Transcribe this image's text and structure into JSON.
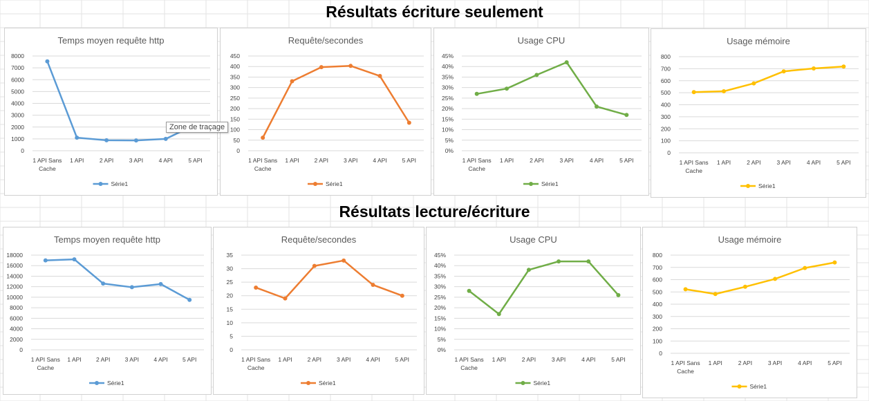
{
  "sections": [
    {
      "title": "Résultats écriture seulement"
    },
    {
      "title": "Résultats lecture/écriture"
    }
  ],
  "tooltip": "Zone de traçage",
  "chart_data": [
    {
      "type": "line",
      "title": "Temps moyen requête http",
      "categories": [
        "1 API Sans Cache",
        "1 API",
        "2 API",
        "3 API",
        "4 API",
        "5 API"
      ],
      "series": [
        {
          "name": "Série1",
          "values": [
            7550,
            1100,
            880,
            870,
            1000,
            2200
          ]
        }
      ],
      "yticks": [
        0,
        1000,
        2000,
        3000,
        4000,
        5000,
        6000,
        7000,
        8000
      ],
      "ylim": [
        0,
        8000
      ],
      "color": "#5b9bd5",
      "grid": true,
      "legend": "bottom"
    },
    {
      "type": "line",
      "title": "Requête/secondes",
      "categories": [
        "1 API Sans Cache",
        "1 API",
        "2 API",
        "3 API",
        "4 API",
        "5 API"
      ],
      "series": [
        {
          "name": "Série1",
          "values": [
            62,
            330,
            397,
            403,
            355,
            133
          ]
        }
      ],
      "yticks": [
        0,
        50,
        100,
        150,
        200,
        250,
        300,
        350,
        400,
        450
      ],
      "ylim": [
        0,
        450
      ],
      "color": "#ed7d31",
      "grid": true,
      "legend": "bottom"
    },
    {
      "type": "line",
      "title": "Usage CPU",
      "categories": [
        "1 API Sans Cache",
        "1 API",
        "2 API",
        "3 API",
        "4 API",
        "5 API"
      ],
      "series": [
        {
          "name": "Série1",
          "values": [
            27,
            29.5,
            36,
            42,
            21,
            17
          ]
        }
      ],
      "yticks": [
        0,
        5,
        10,
        15,
        20,
        25,
        30,
        35,
        40,
        45
      ],
      "ylim": [
        0,
        45
      ],
      "unit": "%",
      "color": "#70ad47",
      "grid": true,
      "legend": "bottom"
    },
    {
      "type": "line",
      "title": "Usage mémoire",
      "categories": [
        "1 API Sans Cache",
        "1 API",
        "2 API",
        "3 API",
        "4 API",
        "5 API"
      ],
      "series": [
        {
          "name": "Série1",
          "values": [
            505,
            512,
            578,
            678,
            702,
            718
          ]
        }
      ],
      "yticks": [
        0,
        100,
        200,
        300,
        400,
        500,
        600,
        700,
        800
      ],
      "ylim": [
        0,
        800
      ],
      "color": "#ffc000",
      "grid": true,
      "legend": "bottom"
    },
    {
      "type": "line",
      "title": "Temps moyen requête http",
      "categories": [
        "1 API Sans Cache",
        "1 API",
        "2 API",
        "3 API",
        "4 API",
        "5 API"
      ],
      "series": [
        {
          "name": "Série1",
          "values": [
            17000,
            17200,
            12600,
            11900,
            12500,
            9500
          ]
        }
      ],
      "yticks": [
        0,
        2000,
        4000,
        6000,
        8000,
        10000,
        12000,
        14000,
        16000,
        18000
      ],
      "ylim": [
        0,
        18000
      ],
      "color": "#5b9bd5",
      "grid": true,
      "legend": "bottom"
    },
    {
      "type": "line",
      "title": "Requête/secondes",
      "categories": [
        "1 API Sans Cache",
        "1 API",
        "2 API",
        "3 API",
        "4 API",
        "5 API"
      ],
      "series": [
        {
          "name": "Série1",
          "values": [
            23,
            19,
            31,
            33,
            24,
            20
          ]
        }
      ],
      "yticks": [
        0,
        5,
        10,
        15,
        20,
        25,
        30,
        35
      ],
      "ylim": [
        0,
        35
      ],
      "color": "#ed7d31",
      "grid": true,
      "legend": "bottom"
    },
    {
      "type": "line",
      "title": "Usage CPU",
      "categories": [
        "1 API Sans Cache",
        "1 API",
        "2 API",
        "3 API",
        "4 API",
        "5 API"
      ],
      "series": [
        {
          "name": "Série1",
          "values": [
            28,
            17,
            38,
            42,
            42,
            26
          ]
        }
      ],
      "yticks": [
        0,
        5,
        10,
        15,
        20,
        25,
        30,
        35,
        40,
        45
      ],
      "ylim": [
        0,
        45
      ],
      "unit": "%",
      "color": "#70ad47",
      "grid": true,
      "legend": "bottom"
    },
    {
      "type": "line",
      "title": "Usage mémoire",
      "categories": [
        "1 API Sans Cache",
        "1 API",
        "2 API",
        "3 API",
        "4 API",
        "5 API"
      ],
      "series": [
        {
          "name": "Série1",
          "values": [
            522,
            483,
            542,
            606,
            695,
            740
          ]
        }
      ],
      "yticks": [
        0,
        100,
        200,
        300,
        400,
        500,
        600,
        700,
        800
      ],
      "ylim": [
        0,
        800
      ],
      "color": "#ffc000",
      "grid": true,
      "legend": "bottom"
    }
  ]
}
